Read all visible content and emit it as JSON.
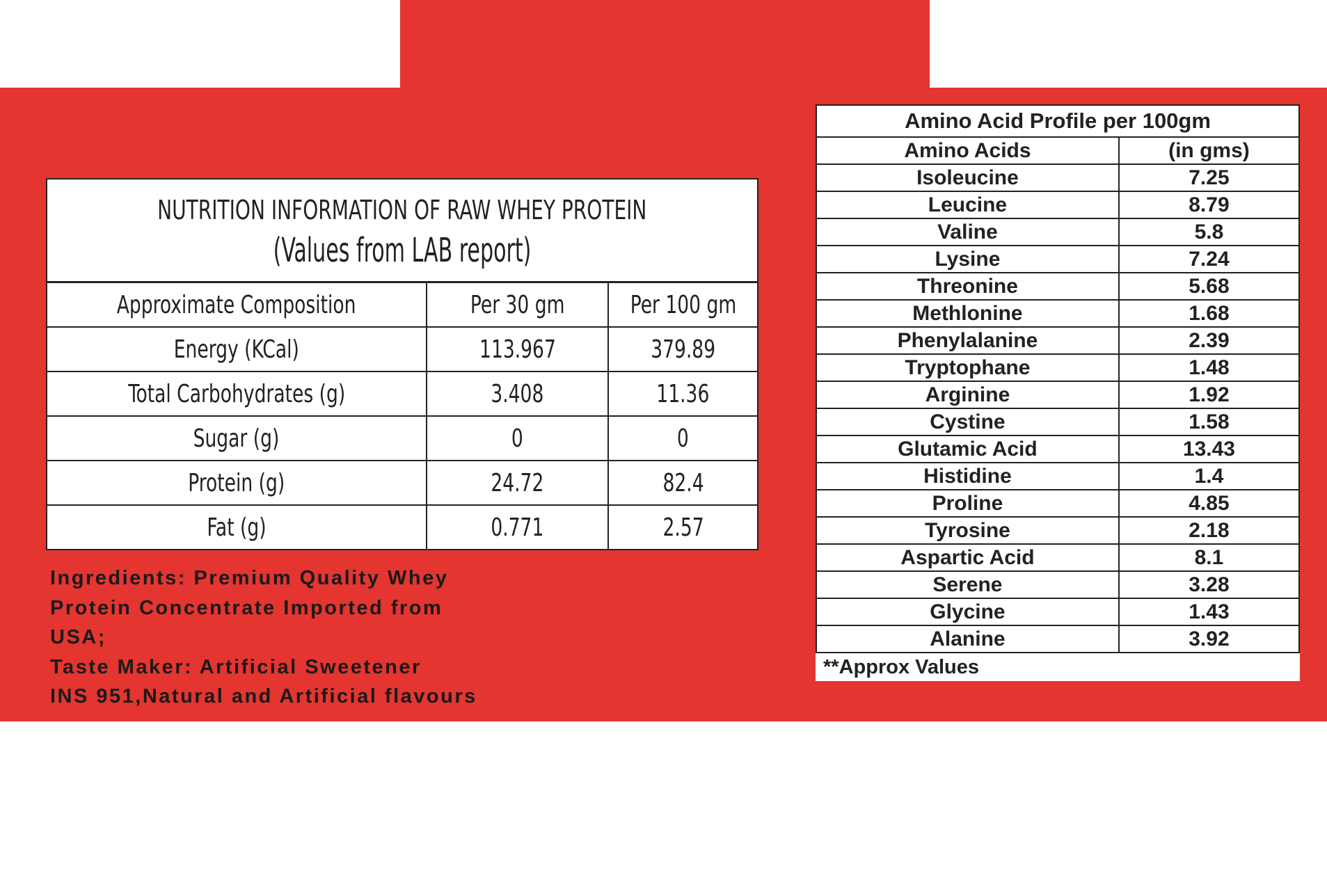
{
  "colors": {
    "background_red": "#e43530",
    "table_bg": "#ffffff",
    "text": "#222222"
  },
  "nutrition": {
    "title": "NUTRITION INFORMATION OF RAW WHEY PROTEIN",
    "subtitle": "(Values from LAB report)",
    "headers": [
      "Approximate Composition",
      "Per 30 gm",
      "Per 100 gm"
    ],
    "rows": [
      [
        "Energy (KCal)",
        "113.967",
        "379.89"
      ],
      [
        "Total Carbohydrates (g)",
        "3.408",
        "11.36"
      ],
      [
        "Sugar (g)",
        "0",
        "0"
      ],
      [
        "Protein (g)",
        "24.72",
        "82.4"
      ],
      [
        "Fat (g)",
        "0.771",
        "2.57"
      ]
    ]
  },
  "ingredients": {
    "lines": [
      "Ingredients: Premium Quality Whey",
      "Protein Concentrate Imported from",
      "USA;",
      "Taste Maker: Artificial Sweetener",
      "INS 951,Natural and Artificial flavours"
    ]
  },
  "amino": {
    "title": "Amino Acid Profile per 100gm",
    "headers": [
      "Amino Acids",
      "(in gms)"
    ],
    "rows": [
      [
        "Isoleucine",
        "7.25"
      ],
      [
        "Leucine",
        "8.79"
      ],
      [
        "Valine",
        "5.8"
      ],
      [
        "Lysine",
        "7.24"
      ],
      [
        "Threonine",
        "5.68"
      ],
      [
        "Methlonine",
        "1.68"
      ],
      [
        "Phenylalanine",
        "2.39"
      ],
      [
        "Tryptophane",
        "1.48"
      ],
      [
        "Arginine",
        "1.92"
      ],
      [
        "Cystine",
        "1.58"
      ],
      [
        "Glutamic Acid",
        "13.43"
      ],
      [
        "Histidine",
        "1.4"
      ],
      [
        "Proline",
        "4.85"
      ],
      [
        "Tyrosine",
        "2.18"
      ],
      [
        "Aspartic Acid",
        "8.1"
      ],
      [
        "Serene",
        "3.28"
      ],
      [
        "Glycine",
        "1.43"
      ],
      [
        "Alanine",
        "3.92"
      ]
    ],
    "footnote": "**Approx Values"
  }
}
